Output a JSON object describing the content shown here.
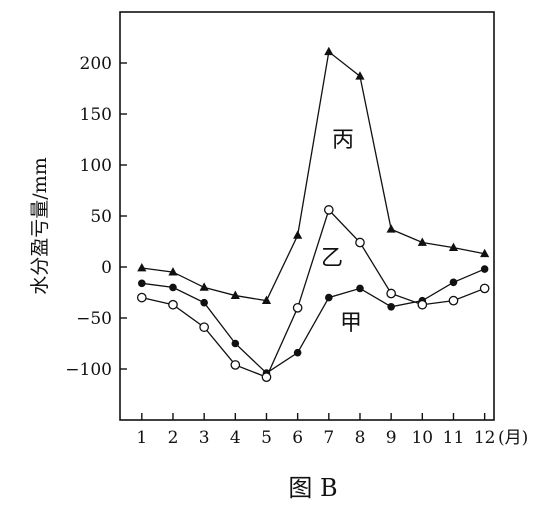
{
  "chart_data": {
    "type": "line",
    "caption": "图 B",
    "ylabel": "水分盈亏量/mm",
    "xunit": "(月)",
    "x": [
      1,
      2,
      3,
      4,
      5,
      6,
      7,
      8,
      9,
      10,
      11,
      12
    ],
    "yticks": [
      -100,
      -50,
      0,
      50,
      100,
      150,
      200
    ],
    "ytick_labels": [
      "−100",
      "−50",
      "0",
      "50",
      "100",
      "150",
      "200"
    ],
    "ylim": [
      -150,
      250
    ],
    "xlim": [
      0.3,
      12.3
    ],
    "grid": false,
    "series": [
      {
        "name": "甲",
        "marker": "filled-circle",
        "values": [
          -16,
          -20,
          -35,
          -75,
          -104,
          -84,
          -30,
          -21,
          -39,
          -33,
          -15,
          -2
        ]
      },
      {
        "name": "乙",
        "marker": "open-circle",
        "values": [
          -30,
          -37,
          -59,
          -96,
          -108,
          -40,
          56,
          24,
          -26,
          -37,
          -33,
          -21
        ]
      },
      {
        "name": "丙",
        "marker": "filled-triangle",
        "values": [
          -1,
          -5,
          -20,
          -28,
          -33,
          31,
          211,
          187,
          37,
          24,
          19,
          13
        ]
      }
    ]
  }
}
